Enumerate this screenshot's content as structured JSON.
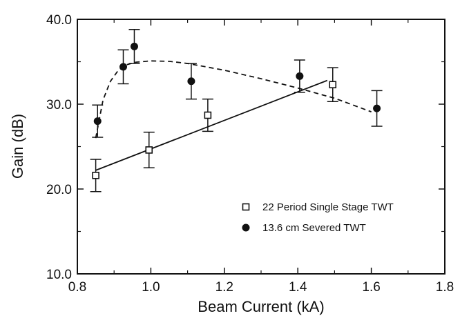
{
  "chart_data": {
    "type": "scatter",
    "xlabel": "Beam Current (kA)",
    "ylabel": "Gain (dB)",
    "xlim": [
      0.8,
      1.8
    ],
    "ylim": [
      10.0,
      40.0
    ],
    "xticks": [
      0.8,
      1.0,
      1.2,
      1.4,
      1.6,
      1.8
    ],
    "xtick_labels": [
      "0.8",
      "1.0",
      "1.2",
      "1.4",
      "1.6",
      "1.8"
    ],
    "yticks": [
      10.0,
      20.0,
      30.0,
      40.0
    ],
    "ytick_labels": [
      "10.0",
      "20.0",
      "30.0",
      "40.0"
    ],
    "grid": false,
    "legend_position": "bottom-right",
    "series": [
      {
        "name": "22 Period Single Stage TWT",
        "marker": "open-square",
        "x": [
          0.85,
          0.995,
          1.155,
          1.495
        ],
        "y": [
          21.6,
          24.6,
          28.7,
          32.3
        ],
        "err": [
          1.9,
          2.1,
          1.9,
          2.0
        ],
        "fit": {
          "style": "solid",
          "x": [
            0.85,
            1.48
          ],
          "y": [
            22.2,
            32.8
          ]
        }
      },
      {
        "name": "13.6 cm Severed TWT",
        "marker": "filled-circle",
        "x": [
          0.855,
          0.925,
          0.955,
          1.11,
          1.405,
          1.615
        ],
        "y": [
          28.0,
          34.4,
          36.8,
          32.7,
          33.3,
          29.5
        ],
        "err": [
          1.9,
          2.0,
          2.0,
          2.1,
          1.9,
          2.1
        ],
        "fit": {
          "style": "dashed",
          "x": [
            0.85,
            0.87,
            0.89,
            0.91,
            0.93,
            0.96,
            1.0,
            1.05,
            1.1,
            1.2,
            1.3,
            1.4,
            1.5,
            1.55,
            1.6
          ],
          "y": [
            26.0,
            30.5,
            32.7,
            33.9,
            34.6,
            34.95,
            35.1,
            35.05,
            34.8,
            34.0,
            33.0,
            31.9,
            30.7,
            29.9,
            29.1
          ]
        }
      }
    ]
  }
}
